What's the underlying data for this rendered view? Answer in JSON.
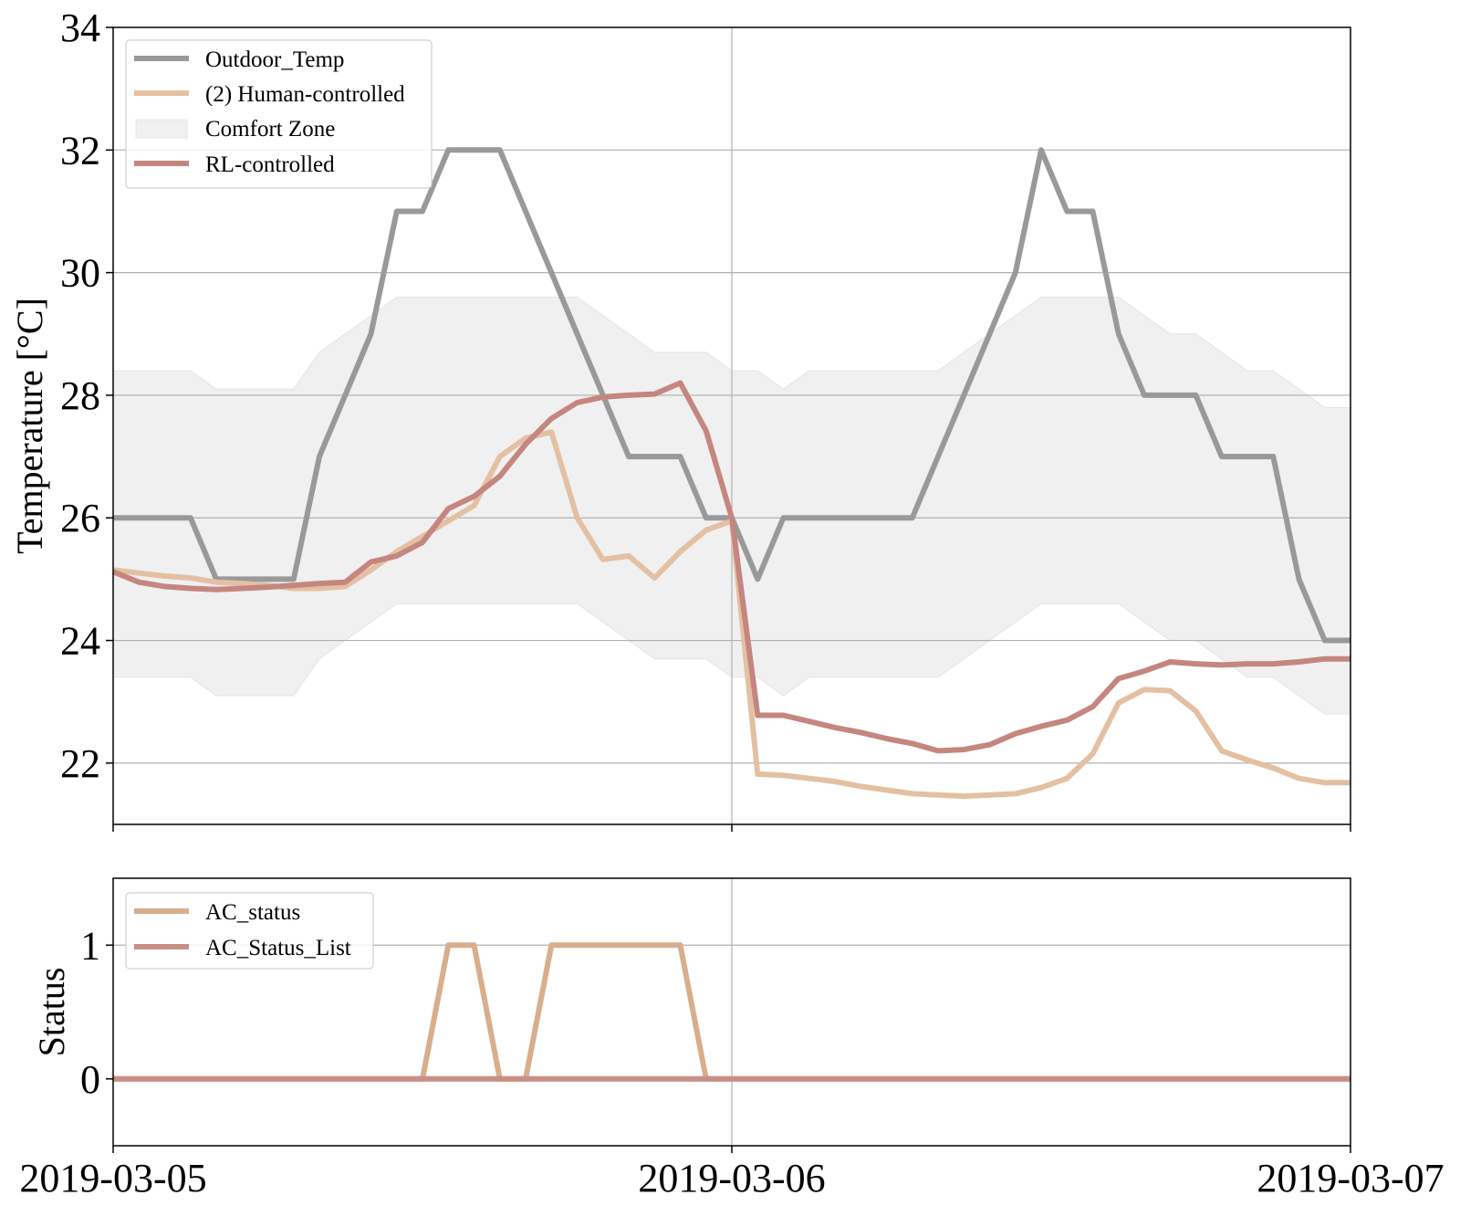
{
  "chart_data": [
    {
      "type": "line",
      "ylabel": "Temperature [°C]",
      "xlabel": "",
      "title": "",
      "ylim": [
        21,
        34
      ],
      "yticks": [
        22,
        24,
        26,
        28,
        30,
        32,
        34
      ],
      "xlim": [
        0,
        48
      ],
      "x_unit": "hours since 2019-03-05 00:00",
      "x_ticks": [
        0,
        24,
        48
      ],
      "x_tick_labels": [
        "2019-03-05",
        "2019-03-06",
        "2019-03-07"
      ],
      "grid": true,
      "legend": "top-left",
      "legend_entries": [
        {
          "key": "outdoor",
          "label": "Outdoor_Temp"
        },
        {
          "key": "human",
          "label": "(2) Human-controlled"
        },
        {
          "key": "comfort",
          "label": "Comfort Zone"
        },
        {
          "key": "rl",
          "label": "RL-controlled"
        }
      ],
      "series": [
        {
          "key": "outdoor",
          "name": "Outdoor_Temp",
          "color": "#999999",
          "x": [
            0,
            1,
            2,
            3,
            4,
            5,
            6,
            7,
            8,
            9,
            10,
            11,
            12,
            13,
            14,
            15,
            16,
            17,
            18,
            19,
            20,
            21,
            22,
            23,
            24,
            25,
            26,
            27,
            28,
            29,
            30,
            31,
            32,
            33,
            34,
            35,
            36,
            37,
            38,
            39,
            40,
            41,
            42,
            43,
            44,
            45,
            46,
            47,
            48
          ],
          "values": [
            26,
            26,
            26,
            26,
            25,
            25,
            25,
            25,
            27,
            28,
            29,
            31,
            31,
            32,
            32,
            32,
            31,
            30,
            29,
            28,
            27,
            27,
            27,
            26,
            26,
            25,
            26,
            26,
            26,
            26,
            26,
            26,
            27,
            28,
            29,
            30,
            32,
            31,
            31,
            29,
            28,
            28,
            28,
            27,
            27,
            27,
            25,
            24,
            24
          ]
        },
        {
          "key": "human",
          "name": "(2) Human-controlled",
          "color": "#e4c0a2",
          "x": [
            0,
            1,
            2,
            3,
            4,
            5,
            6,
            7,
            8,
            9,
            10,
            11,
            12,
            13,
            14,
            15,
            16,
            17,
            18,
            19,
            20,
            21,
            22,
            23,
            24,
            25,
            26,
            27,
            28,
            29,
            30,
            31,
            32,
            33,
            34,
            35,
            36,
            37,
            38,
            39,
            40,
            41,
            42,
            43,
            44,
            45,
            46,
            47,
            48
          ],
          "values": [
            25.15,
            25.1,
            25.05,
            25.02,
            24.95,
            24.93,
            24.9,
            24.85,
            24.85,
            24.88,
            25.15,
            25.45,
            25.7,
            25.95,
            26.2,
            27.0,
            27.3,
            27.4,
            26.0,
            25.32,
            25.38,
            25.02,
            25.45,
            25.8,
            25.95,
            21.82,
            21.8,
            21.75,
            21.7,
            21.62,
            21.56,
            21.5,
            21.48,
            21.46,
            21.48,
            21.5,
            21.6,
            21.75,
            22.15,
            22.98,
            23.2,
            23.18,
            22.85,
            22.2,
            22.05,
            21.92,
            21.75,
            21.68,
            21.68
          ]
        },
        {
          "key": "rl",
          "name": "RL-controlled",
          "color": "#c4867e",
          "x": [
            0,
            1,
            2,
            3,
            4,
            5,
            6,
            7,
            8,
            9,
            10,
            11,
            12,
            13,
            14,
            15,
            16,
            17,
            18,
            19,
            20,
            21,
            22,
            23,
            24,
            25,
            26,
            27,
            28,
            29,
            30,
            31,
            32,
            33,
            34,
            35,
            36,
            37,
            38,
            39,
            40,
            41,
            42,
            43,
            44,
            45,
            46,
            47,
            48
          ],
          "values": [
            25.12,
            24.95,
            24.88,
            24.85,
            24.83,
            24.85,
            24.87,
            24.9,
            24.93,
            24.95,
            25.28,
            25.38,
            25.6,
            26.15,
            26.35,
            26.68,
            27.2,
            27.62,
            27.88,
            27.97,
            28.0,
            28.02,
            28.2,
            27.42,
            26.0,
            22.78,
            22.78,
            22.68,
            22.58,
            22.5,
            22.4,
            22.32,
            22.2,
            22.22,
            22.3,
            22.48,
            22.6,
            22.7,
            22.92,
            23.38,
            23.5,
            23.65,
            23.62,
            23.6,
            23.62,
            23.62,
            23.65,
            23.7,
            23.7
          ]
        }
      ],
      "bands": [
        {
          "key": "comfort",
          "name": "Comfort Zone",
          "color": "#f0f0f0",
          "edge_color": "#e3e3e3",
          "x": [
            0,
            1,
            2,
            3,
            4,
            5,
            6,
            7,
            8,
            9,
            10,
            11,
            12,
            13,
            14,
            15,
            16,
            17,
            18,
            19,
            20,
            21,
            22,
            23,
            24,
            25,
            26,
            27,
            28,
            29,
            30,
            31,
            32,
            33,
            34,
            35,
            36,
            37,
            38,
            39,
            40,
            41,
            42,
            43,
            44,
            45,
            46,
            47,
            48
          ],
          "lower": [
            23.4,
            23.4,
            23.4,
            23.4,
            23.1,
            23.1,
            23.1,
            23.1,
            23.7,
            24.0,
            24.3,
            24.6,
            24.6,
            24.6,
            24.6,
            24.6,
            24.6,
            24.6,
            24.6,
            24.3,
            24.0,
            23.7,
            23.7,
            23.7,
            23.4,
            23.4,
            23.1,
            23.4,
            23.4,
            23.4,
            23.4,
            23.4,
            23.4,
            23.7,
            24.0,
            24.3,
            24.6,
            24.6,
            24.6,
            24.6,
            24.3,
            24.0,
            24.0,
            23.7,
            23.4,
            23.4,
            23.1,
            22.8,
            22.8
          ],
          "upper": [
            28.4,
            28.4,
            28.4,
            28.4,
            28.1,
            28.1,
            28.1,
            28.1,
            28.7,
            29.0,
            29.3,
            29.6,
            29.6,
            29.6,
            29.6,
            29.6,
            29.6,
            29.6,
            29.6,
            29.3,
            29.0,
            28.7,
            28.7,
            28.7,
            28.4,
            28.4,
            28.1,
            28.4,
            28.4,
            28.4,
            28.4,
            28.4,
            28.4,
            28.7,
            29.0,
            29.3,
            29.6,
            29.6,
            29.6,
            29.6,
            29.3,
            29.0,
            29.0,
            28.7,
            28.4,
            28.4,
            28.1,
            27.8,
            27.8
          ]
        }
      ]
    },
    {
      "type": "line",
      "ylabel": "Status",
      "xlabel": "",
      "title": "",
      "ylim": [
        -0.5,
        1.5
      ],
      "yticks": [
        0,
        1
      ],
      "xlim": [
        0,
        48
      ],
      "x_unit": "hours since 2019-03-05 00:00",
      "x_ticks": [
        0,
        24,
        48
      ],
      "x_tick_labels": [
        "2019-03-05",
        "2019-03-06",
        "2019-03-07"
      ],
      "grid": true,
      "legend": "top-left",
      "legend_entries": [
        {
          "key": "ac",
          "label": "AC_status"
        },
        {
          "key": "aclist",
          "label": "AC_Status_List"
        }
      ],
      "series": [
        {
          "key": "ac",
          "name": "AC_status",
          "color": "#d9ae8c",
          "x": [
            0,
            1,
            2,
            3,
            4,
            5,
            6,
            7,
            8,
            9,
            10,
            11,
            12,
            13,
            14,
            15,
            16,
            17,
            18,
            19,
            20,
            21,
            22,
            23,
            24,
            25,
            26,
            27,
            28,
            29,
            30,
            31,
            32,
            33,
            34,
            35,
            36,
            37,
            38,
            39,
            40,
            41,
            42,
            43,
            44,
            45,
            46,
            47,
            48
          ],
          "values": [
            0,
            0,
            0,
            0,
            0,
            0,
            0,
            0,
            0,
            0,
            0,
            0,
            0,
            1,
            1,
            0,
            0,
            1,
            1,
            1,
            1,
            1,
            1,
            0,
            0,
            0,
            0,
            0,
            0,
            0,
            0,
            0,
            0,
            0,
            0,
            0,
            0,
            0,
            0,
            0,
            0,
            0,
            0,
            0,
            0,
            0,
            0,
            0,
            0
          ]
        },
        {
          "key": "aclist",
          "name": "AC_Status_List",
          "color": "#c98f86",
          "x": [
            0,
            48
          ],
          "values": [
            0,
            0
          ]
        }
      ]
    }
  ]
}
